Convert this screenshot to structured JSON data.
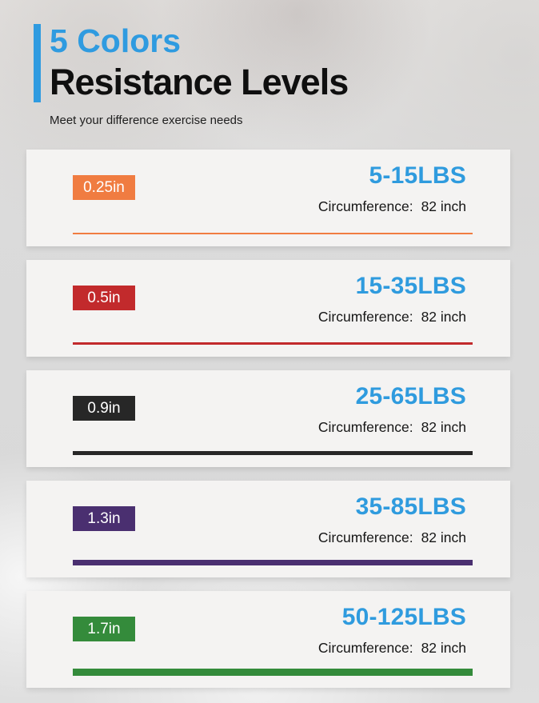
{
  "header": {
    "title": "5 Colors",
    "subtitle": "Resistance Levels",
    "tagline": "Meet your difference exercise needs",
    "accent_color": "#2F9BE0"
  },
  "labels": {
    "circumference": "Circumference:"
  },
  "weight_text_color": "#2F9BDE",
  "bands": [
    {
      "width_label": "0.25in",
      "color": "#F07C41",
      "weight_range": "5-15LBS",
      "circumference": "82 inch",
      "line_thickness": 2
    },
    {
      "width_label": "0.5in",
      "color": "#C22A2C",
      "weight_range": "15-35LBS",
      "circumference": "82 inch",
      "line_thickness": 3
    },
    {
      "width_label": "0.9in",
      "color": "#272727",
      "weight_range": "25-65LBS",
      "circumference": "82 inch",
      "line_thickness": 5
    },
    {
      "width_label": "1.3in",
      "color": "#4A2F70",
      "weight_range": "35-85LBS",
      "circumference": "82 inch",
      "line_thickness": 7
    },
    {
      "width_label": "1.7in",
      "color": "#348B3B",
      "weight_range": "50-125LBS",
      "circumference": "82 inch",
      "line_thickness": 9
    }
  ]
}
